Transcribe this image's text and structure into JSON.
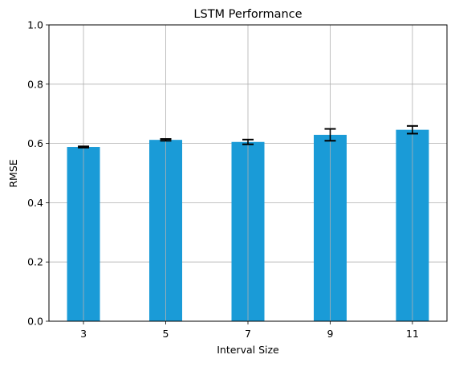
{
  "chart_data": {
    "type": "bar",
    "title": "LSTM Performance",
    "xlabel": "Interval Size",
    "ylabel": "RMSE",
    "categories": [
      "3",
      "5",
      "7",
      "9",
      "11"
    ],
    "values": [
      0.588,
      0.612,
      0.605,
      0.629,
      0.646
    ],
    "errors": [
      0.002,
      0.003,
      0.008,
      0.02,
      0.013
    ],
    "ylim": [
      0,
      1.0
    ],
    "yticks": [
      "0.0",
      "0.2",
      "0.4",
      "0.6",
      "0.8",
      "1.0"
    ],
    "grid": true,
    "bar_color": "#1a9bd7",
    "error_color": "#000000",
    "grid_color": "#b0b0b0"
  }
}
